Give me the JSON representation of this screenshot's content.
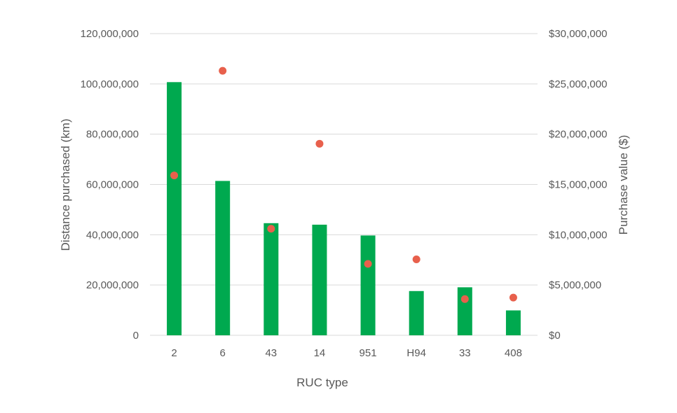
{
  "chart_data": {
    "type": "bar",
    "categories": [
      "2",
      "6",
      "43",
      "14",
      "951",
      "H94",
      "33",
      "408"
    ],
    "series": [
      {
        "name": "Distance purchased (km)",
        "type": "bar",
        "axis": "left",
        "values": [
          100700000,
          61400000,
          44600000,
          44000000,
          39700000,
          17600000,
          19100000,
          9900000
        ]
      },
      {
        "name": "Purchase value ($)",
        "type": "scatter",
        "axis": "right",
        "values": [
          15900000,
          26300000,
          10600000,
          19050000,
          7100000,
          7550000,
          3600000,
          3750000
        ]
      }
    ],
    "xlabel": "RUC type",
    "ylabel_left": "Distance purchased (km)",
    "ylabel_right": "Purchase value ($)",
    "ylim_left": [
      0,
      120000000
    ],
    "ylim_right": [
      0,
      30000000
    ],
    "yticks_left": [
      "0",
      "20,000,000",
      "40,000,000",
      "60,000,000",
      "80,000,000",
      "100,000,000",
      "120,000,000"
    ],
    "yticks_right": [
      "$0",
      "$5,000,000",
      "$10,000,000",
      "$15,000,000",
      "$20,000,000",
      "$25,000,000",
      "$30,000,000"
    ],
    "grid": true,
    "legend": "none",
    "colors": {
      "bar": "#00a94f",
      "point": "#e8604c",
      "grid": "#d9d9d9",
      "text": "#595959"
    }
  }
}
